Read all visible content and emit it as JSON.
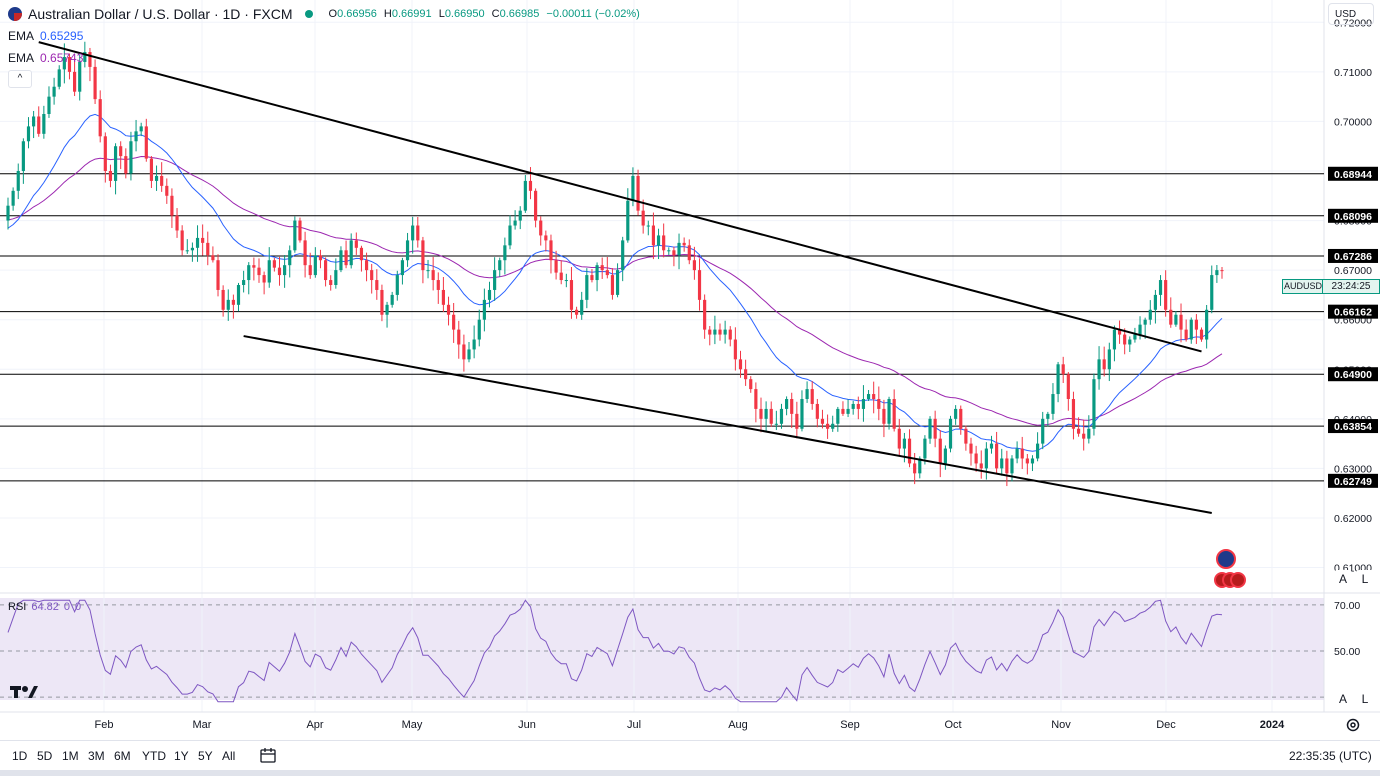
{
  "header": {
    "title": "Australian Dollar / U.S. Dollar · 1D · FXCM",
    "open_label": "O",
    "open": "0.66956",
    "high_label": "H",
    "high": "0.66991",
    "low_label": "L",
    "low": "0.66950",
    "close_label": "C",
    "close": "0.66985",
    "change": "−0.00011 (−0.02%)",
    "market_status_color": "#089981"
  },
  "indicators": {
    "ema_fast": {
      "label": "EMA",
      "value": "0.65295",
      "color": "#2962ff"
    },
    "ema_slow": {
      "label": "EMA",
      "value": "0.65743",
      "color": "#9c27b0"
    },
    "collapse_symbol": "^"
  },
  "currency_selector": "USD",
  "symbol_tag": {
    "symbol": "AUDUSD",
    "countdown": "23:24:25"
  },
  "chart_data": {
    "type": "candlestick",
    "instrument": "AUDUSD",
    "timeframe": "1D",
    "price_axis": {
      "ticks": [
        "0.72000",
        "0.71000",
        "0.70000",
        "0.69000",
        "0.68000",
        "0.67000",
        "0.66000",
        "0.65000",
        "0.64000",
        "0.63000",
        "0.62000",
        "0.61000"
      ],
      "ylim": [
        0.6095,
        0.7245
      ]
    },
    "horizontal_levels": [
      {
        "label": "0.68944",
        "value": 0.68944
      },
      {
        "label": "0.68096",
        "value": 0.68096
      },
      {
        "label": "0.67286",
        "value": 0.67286
      },
      {
        "label": "0.66162",
        "value": 0.66162
      },
      {
        "label": "0.64900",
        "value": 0.649
      },
      {
        "label": "0.63854",
        "value": 0.63854
      },
      {
        "label": "0.62749",
        "value": 0.62749
      }
    ],
    "time_axis": {
      "labels": [
        "Feb",
        "Mar",
        "Apr",
        "May",
        "Jun",
        "Jul",
        "Aug",
        "Sep",
        "Oct",
        "Nov",
        "Dec",
        "2024"
      ]
    },
    "trend_channel": {
      "upper": [
        [
          6,
          0.716
        ],
        [
          233,
          0.6536
        ]
      ],
      "lower": [
        [
          46,
          0.6567
        ],
        [
          235,
          0.621
        ]
      ]
    },
    "candles_close": [
      0.683,
      0.686,
      0.69,
      0.696,
      0.699,
      0.701,
      0.6975,
      0.7015,
      0.705,
      0.707,
      0.7105,
      0.713,
      0.71,
      0.706,
      0.712,
      0.714,
      0.711,
      0.7045,
      0.697,
      0.69,
      0.688,
      0.695,
      0.693,
      0.6895,
      0.696,
      0.698,
      0.699,
      0.6925,
      0.688,
      0.689,
      0.687,
      0.685,
      0.681,
      0.678,
      0.674,
      0.674,
      0.6745,
      0.6765,
      0.6755,
      0.673,
      0.672,
      0.666,
      0.662,
      0.664,
      0.663,
      0.667,
      0.668,
      0.671,
      0.6705,
      0.669,
      0.6675,
      0.672,
      0.6705,
      0.669,
      0.671,
      0.674,
      0.68,
      0.676,
      0.671,
      0.669,
      0.673,
      0.672,
      0.668,
      0.667,
      0.67,
      0.674,
      0.671,
      0.676,
      0.6745,
      0.672,
      0.67,
      0.668,
      0.666,
      0.661,
      0.663,
      0.665,
      0.669,
      0.672,
      0.676,
      0.679,
      0.676,
      0.67,
      0.67,
      0.668,
      0.666,
      0.663,
      0.661,
      0.658,
      0.655,
      0.652,
      0.654,
      0.656,
      0.66,
      0.664,
      0.666,
      0.67,
      0.672,
      0.675,
      0.679,
      0.68,
      0.682,
      0.688,
      0.686,
      0.68,
      0.677,
      0.676,
      0.672,
      0.6695,
      0.668,
      0.668,
      0.662,
      0.661,
      0.664,
      0.669,
      0.668,
      0.671,
      0.67,
      0.669,
      0.665,
      0.67,
      0.676,
      0.684,
      0.689,
      0.682,
      0.679,
      0.679,
      0.675,
      0.677,
      0.674,
      0.674,
      0.673,
      0.6755,
      0.675,
      0.672,
      0.67,
      0.664,
      0.658,
      0.657,
      0.658,
      0.657,
      0.658,
      0.656,
      0.652,
      0.65,
      0.648,
      0.646,
      0.642,
      0.64,
      0.642,
      0.639,
      0.639,
      0.642,
      0.644,
      0.641,
      0.638,
      0.644,
      0.646,
      0.643,
      0.64,
      0.639,
      0.638,
      0.639,
      0.642,
      0.641,
      0.642,
      0.643,
      0.642,
      0.644,
      0.645,
      0.644,
      0.642,
      0.639,
      0.644,
      0.638,
      0.634,
      0.636,
      0.631,
      0.629,
      0.632,
      0.636,
      0.64,
      0.636,
      0.631,
      0.634,
      0.64,
      0.642,
      0.638,
      0.635,
      0.633,
      0.631,
      0.63,
      0.634,
      0.635,
      0.63,
      0.632,
      0.629,
      0.632,
      0.634,
      0.632,
      0.631,
      0.632,
      0.635,
      0.64,
      0.641,
      0.645,
      0.651,
      0.649,
      0.644,
      0.638,
      0.637,
      0.636,
      0.638,
      0.648,
      0.652,
      0.65,
      0.654,
      0.658,
      0.657,
      0.655,
      0.656,
      0.657,
      0.659,
      0.66,
      0.662,
      0.665,
      0.668,
      0.662,
      0.659,
      0.661,
      0.658,
      0.656,
      0.66,
      0.658,
      0.656,
      0.662,
      0.669,
      0.67,
      0.6699
    ],
    "ema_fast_values": {
      "label": "EMA",
      "color": "#2962ff",
      "last": 0.65295
    },
    "ema_slow_values": {
      "label": "EMA",
      "color": "#9c27b0",
      "last": 0.65743
    }
  },
  "rsi": {
    "label": "RSI",
    "value": "64.82",
    "extra1": "0",
    "extra2": "0",
    "levels": [
      "70.00",
      "50.00"
    ],
    "color": "#7e57c2"
  },
  "toolbar": {
    "ranges": [
      "1D",
      "5D",
      "1M",
      "3M",
      "6M",
      "YTD",
      "1Y",
      "5Y",
      "All"
    ],
    "clock": "22:35:35 (UTC)",
    "auto_label": "A",
    "log_label": "L"
  },
  "colors": {
    "up": "#089981",
    "down": "#f23645",
    "grid": "#f0f3fa"
  }
}
